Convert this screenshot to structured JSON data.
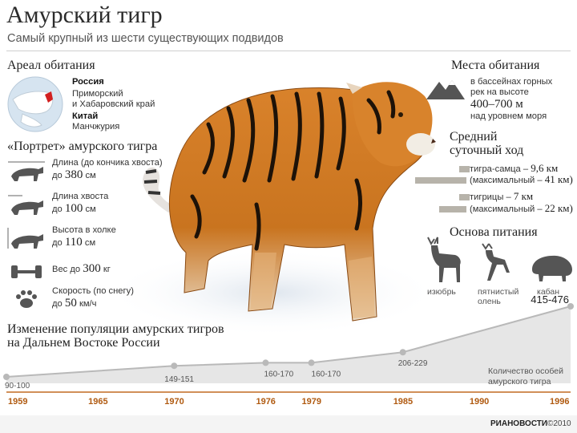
{
  "header": {
    "title": "Амурский тигр",
    "subtitle": "Самый крупный из шести существующих подвидов"
  },
  "range": {
    "heading": "Ареал обитания",
    "country1": "Россия",
    "country1_regions": [
      "Приморский",
      "и Хабаровский край"
    ],
    "country2": "Китай",
    "country2_regions": [
      "Манчжурия"
    ]
  },
  "portrait": {
    "heading": "«Портрет» амурского тигра",
    "rows": [
      {
        "icon": "tiger-length-icon",
        "line1": "Длина (до кончика хвоста)",
        "prefix": "до ",
        "value": "380",
        "unit": " см"
      },
      {
        "icon": "tiger-tail-icon",
        "line1": "Длина хвоста",
        "prefix": "до ",
        "value": "100",
        "unit": " см"
      },
      {
        "icon": "tiger-height-icon",
        "line1": "Высота в холке",
        "prefix": "до ",
        "value": "110",
        "unit": " см"
      },
      {
        "icon": "barbell-icon",
        "line1": "Вес до ",
        "value": "300",
        "unit": " кг",
        "inline": true
      },
      {
        "icon": "paw-icon",
        "line1": "Скорость (по снегу)",
        "prefix": "до ",
        "value": "50",
        "unit": " км/ч"
      }
    ]
  },
  "habitat": {
    "heading": "Места обитания",
    "line1": "в бассейнах горных",
    "line2": "рек на высоте",
    "range_value": "400–700 м",
    "line3": "над уровнем моря"
  },
  "daily": {
    "heading1": "Средний",
    "heading2": "суточный ход",
    "male": {
      "label": "тигра-самца – ",
      "value": "9,6 км",
      "max_label": "(максимальный – ",
      "max_value": "41 км)",
      "avg_fraction": 0.234,
      "max_fraction": 1.0
    },
    "female": {
      "label": "тигрицы – ",
      "value": "7 км",
      "max_label": "(максимальный – ",
      "max_value": "22 км)",
      "avg_fraction": 0.171,
      "max_fraction": 0.537
    }
  },
  "food": {
    "heading": "Основа питания",
    "items": [
      {
        "icon": "deer-icon",
        "label": "изюбрь"
      },
      {
        "icon": "spotted-deer-icon",
        "label": "пятнистый олень"
      },
      {
        "icon": "boar-icon",
        "label": "кабан"
      }
    ]
  },
  "population": {
    "heading1": "Изменение популяции амурских тигров",
    "heading2": "на Дальнем Востоке России",
    "note1": "Количество особей",
    "note2": "амурского тигра",
    "credit": "©2010",
    "brand": "РИАНОВОСТИ"
  },
  "chart_data": {
    "type": "area",
    "x": [
      1959,
      1970,
      1976,
      1979,
      1985,
      1996
    ],
    "labels": [
      "90-100",
      "149-151",
      "160-170",
      "160-170",
      "206-229",
      "415-476"
    ],
    "values": [
      95,
      150,
      165,
      165,
      217.5,
      445.5
    ],
    "ticks": [
      "1959",
      "1965",
      "1970",
      "1976",
      "1979",
      "1985",
      "1990",
      "1996"
    ],
    "xlim": [
      1959,
      1996
    ],
    "ylabel": "Количество особей амурского тигра",
    "colors": {
      "fill": "#e6e6e6",
      "line": "#b9b9b9",
      "tick": "#b05a10",
      "axis": "#c26a20"
    }
  }
}
